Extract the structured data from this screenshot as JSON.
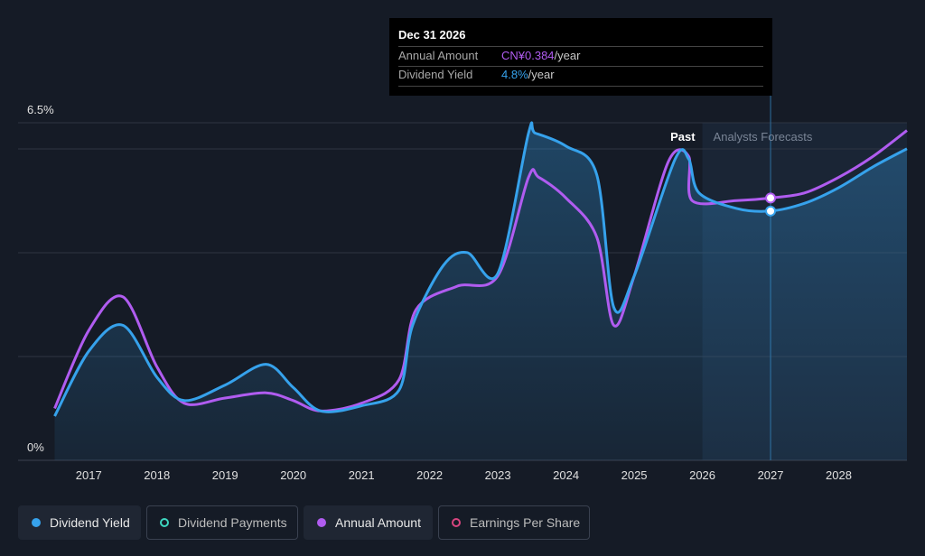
{
  "tooltip": {
    "date": "Dec 31 2026",
    "rows": [
      {
        "label": "Annual Amount",
        "value": "CN¥0.384",
        "unit": "/year"
      },
      {
        "label": "Dividend Yield",
        "value": "4.8%",
        "unit": "/year"
      }
    ]
  },
  "legend": [
    {
      "label": "Dividend Yield",
      "color": "#36a2ec",
      "filled": true,
      "active": true
    },
    {
      "label": "Dividend Payments",
      "color": "#3ed6c0",
      "filled": false,
      "active": false
    },
    {
      "label": "Annual Amount",
      "color": "#b05cf0",
      "filled": true,
      "active": true
    },
    {
      "label": "Earnings Per Share",
      "color": "#d8457f",
      "filled": false,
      "active": false
    }
  ],
  "colors": {
    "yield": "#36a2ec",
    "amount": "#b05cf0",
    "background": "#151b26",
    "forecast_region": "#1a2535",
    "grid": "#2e3543"
  },
  "chart_data": {
    "type": "line",
    "y_tick_labels": [
      "6.5%",
      "0%"
    ],
    "ylim": [
      0,
      6.5
    ],
    "x_tick_labels": [
      "2017",
      "2018",
      "2019",
      "2020",
      "2021",
      "2022",
      "2023",
      "2024",
      "2025",
      "2026",
      "2027",
      "2028"
    ],
    "xlim": [
      2016.5,
      2029.0
    ],
    "region_labels": {
      "past": "Past",
      "forecast": "Analysts Forecasts"
    },
    "forecast_start": 2026.0,
    "highlight_x": 2027.0,
    "series": [
      {
        "name": "Dividend Yield",
        "unit": "%",
        "points": [
          [
            2016.5,
            0.85
          ],
          [
            2017.0,
            2.1
          ],
          [
            2017.5,
            2.6
          ],
          [
            2018.0,
            1.6
          ],
          [
            2018.4,
            1.15
          ],
          [
            2019.0,
            1.45
          ],
          [
            2019.6,
            1.85
          ],
          [
            2020.0,
            1.4
          ],
          [
            2020.4,
            0.95
          ],
          [
            2021.0,
            1.05
          ],
          [
            2021.55,
            1.35
          ],
          [
            2021.75,
            2.6
          ],
          [
            2022.2,
            3.75
          ],
          [
            2022.55,
            4.0
          ],
          [
            2023.0,
            3.6
          ],
          [
            2023.45,
            6.3
          ],
          [
            2023.55,
            6.3
          ],
          [
            2024.0,
            6.05
          ],
          [
            2024.45,
            5.5
          ],
          [
            2024.7,
            2.95
          ],
          [
            2025.0,
            3.55
          ],
          [
            2025.6,
            5.8
          ],
          [
            2025.8,
            5.8
          ],
          [
            2025.95,
            5.15
          ],
          [
            2026.5,
            4.85
          ],
          [
            2027.0,
            4.8
          ],
          [
            2027.5,
            4.95
          ],
          [
            2028.0,
            5.25
          ],
          [
            2028.5,
            5.65
          ],
          [
            2029.0,
            6.0
          ]
        ]
      },
      {
        "name": "Annual Amount",
        "unit": "CN¥",
        "points": [
          [
            2016.5,
            1.0
          ],
          [
            2017.0,
            2.5
          ],
          [
            2017.5,
            3.15
          ],
          [
            2018.0,
            1.8
          ],
          [
            2018.4,
            1.1
          ],
          [
            2019.0,
            1.2
          ],
          [
            2019.6,
            1.3
          ],
          [
            2020.0,
            1.15
          ],
          [
            2020.4,
            0.95
          ],
          [
            2021.0,
            1.1
          ],
          [
            2021.55,
            1.55
          ],
          [
            2021.8,
            2.9
          ],
          [
            2022.4,
            3.35
          ],
          [
            2023.0,
            3.55
          ],
          [
            2023.45,
            5.45
          ],
          [
            2023.6,
            5.45
          ],
          [
            2024.0,
            5.05
          ],
          [
            2024.45,
            4.3
          ],
          [
            2024.7,
            2.6
          ],
          [
            2025.0,
            3.55
          ],
          [
            2025.5,
            5.75
          ],
          [
            2025.8,
            5.85
          ],
          [
            2025.85,
            5.0
          ],
          [
            2026.5,
            5.0
          ],
          [
            2027.0,
            5.05
          ],
          [
            2027.5,
            5.15
          ],
          [
            2028.0,
            5.45
          ],
          [
            2028.5,
            5.85
          ],
          [
            2029.0,
            6.35
          ]
        ]
      }
    ],
    "highlight_points": [
      {
        "series": "Annual Amount",
        "x": 2027.0,
        "y": 5.05
      },
      {
        "series": "Dividend Yield",
        "x": 2027.0,
        "y": 4.8
      }
    ]
  }
}
